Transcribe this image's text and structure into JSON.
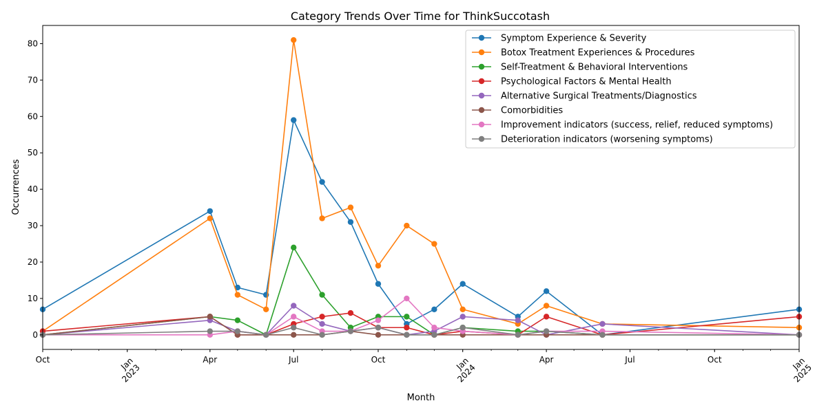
{
  "chart_data": {
    "type": "line",
    "title": "Category Trends Over Time for ThinkSuccotash",
    "xlabel": "Month",
    "ylabel": "Occurrences",
    "xlim": [
      "2022-10-01",
      "2025-01-01"
    ],
    "ylim": [
      -4,
      85
    ],
    "yticks": [
      0,
      10,
      20,
      30,
      40,
      50,
      60,
      70,
      80
    ],
    "xticks": [
      {
        "date": "2022-10-01",
        "label": "Oct",
        "sub": ""
      },
      {
        "date": "2023-01-01",
        "label": "Jan",
        "sub": "2023"
      },
      {
        "date": "2023-04-01",
        "label": "Apr",
        "sub": ""
      },
      {
        "date": "2023-07-01",
        "label": "Jul",
        "sub": ""
      },
      {
        "date": "2023-10-01",
        "label": "Oct",
        "sub": ""
      },
      {
        "date": "2024-01-01",
        "label": "Jan",
        "sub": "2024"
      },
      {
        "date": "2024-04-01",
        "label": "Apr",
        "sub": ""
      },
      {
        "date": "2024-07-01",
        "label": "Jul",
        "sub": ""
      },
      {
        "date": "2024-10-01",
        "label": "Oct",
        "sub": ""
      },
      {
        "date": "2025-01-01",
        "label": "Jan",
        "sub": "2025"
      }
    ],
    "x": [
      "2022-10",
      "2023-04",
      "2023-05",
      "2023-06",
      "2023-07",
      "2023-08",
      "2023-09",
      "2023-10",
      "2023-11",
      "2023-12",
      "2024-01",
      "2024-03",
      "2024-04",
      "2024-06",
      "2025-01"
    ],
    "legend_position": "top-right",
    "grid": false,
    "series": [
      {
        "name": "Symptom Experience & Severity",
        "color": "#1f77b4",
        "values": [
          7,
          34,
          13,
          11,
          59,
          42,
          31,
          14,
          3,
          7,
          14,
          5,
          12,
          0,
          7
        ]
      },
      {
        "name": "Botox Treatment Experiences & Procedures",
        "color": "#ff7f0e",
        "values": [
          1,
          32,
          11,
          7,
          81,
          32,
          35,
          19,
          30,
          25,
          7,
          3,
          8,
          3,
          2
        ]
      },
      {
        "name": "Self-Treatment & Behavioral Interventions",
        "color": "#2ca02c",
        "values": [
          0,
          5,
          4,
          0,
          24,
          11,
          2,
          5,
          5,
          0,
          2,
          1,
          1,
          0,
          0
        ]
      },
      {
        "name": "Psychological Factors & Mental Health",
        "color": "#d62728",
        "values": [
          1,
          5,
          0,
          0,
          3,
          5,
          6,
          2,
          2,
          0,
          1,
          0,
          5,
          0,
          5
        ]
      },
      {
        "name": "Alternative Surgical Treatments/Diagnostics",
        "color": "#9467bd",
        "values": [
          0,
          4,
          1,
          0,
          8,
          3,
          1,
          2,
          0,
          1,
          5,
          4,
          0,
          3,
          0
        ]
      },
      {
        "name": "Comorbidities",
        "color": "#8c564b",
        "values": [
          0,
          5,
          0,
          0,
          0,
          0,
          1,
          0,
          0,
          0,
          0,
          0,
          0,
          0,
          0
        ]
      },
      {
        "name": "Improvement indicators (success, relief, reduced symptoms)",
        "color": "#e377c2",
        "values": [
          0,
          0,
          1,
          0,
          5,
          1,
          1,
          4,
          10,
          2,
          1,
          0,
          1,
          1,
          0
        ]
      },
      {
        "name": "Deterioration indicators (worsening symptoms)",
        "color": "#7f7f7f",
        "values": [
          0,
          1,
          1,
          0,
          2,
          0,
          1,
          2,
          0,
          0,
          2,
          0,
          1,
          0,
          0
        ]
      }
    ]
  }
}
